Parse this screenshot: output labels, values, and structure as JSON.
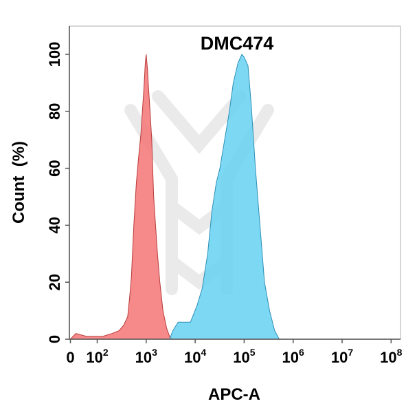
{
  "chart_data": {
    "type": "area",
    "title": "DMC474",
    "xlabel": "APC-A",
    "ylabel": "Count  (%)",
    "xscale": "biexponential",
    "ylim": [
      0,
      100
    ],
    "grid": false,
    "legend": "none",
    "y_ticks": [
      {
        "value": 0,
        "label": "0"
      },
      {
        "value": 20,
        "label": "20"
      },
      {
        "value": 40,
        "label": "40"
      },
      {
        "value": 60,
        "label": "60"
      },
      {
        "value": 80,
        "label": "80"
      },
      {
        "value": 100,
        "label": "100"
      }
    ],
    "x_ticks": [
      {
        "value": 0,
        "base": "0",
        "exp": ""
      },
      {
        "value": 100,
        "base": "10",
        "exp": "2"
      },
      {
        "value": 1000,
        "base": "10",
        "exp": "3"
      },
      {
        "value": 10000,
        "base": "10",
        "exp": "4"
      },
      {
        "value": 100000,
        "base": "10",
        "exp": "5"
      },
      {
        "value": 1000000,
        "base": "10",
        "exp": "6"
      },
      {
        "value": 10000000,
        "base": "10",
        "exp": "7"
      },
      {
        "value": 100000000,
        "base": "10",
        "exp": "8"
      }
    ],
    "series": [
      {
        "color": "#f47474",
        "stroke": "#b83a3a",
        "points": [
          [
            0,
            0
          ],
          [
            20,
            2
          ],
          [
            60,
            1
          ],
          [
            130,
            1
          ],
          [
            200,
            2
          ],
          [
            280,
            3
          ],
          [
            350,
            5
          ],
          [
            420,
            8
          ],
          [
            460,
            15
          ],
          [
            500,
            22
          ],
          [
            560,
            40
          ],
          [
            630,
            55
          ],
          [
            700,
            64
          ],
          [
            780,
            72
          ],
          [
            850,
            82
          ],
          [
            900,
            88
          ],
          [
            960,
            97
          ],
          [
            1000,
            100
          ],
          [
            1060,
            95
          ],
          [
            1120,
            88
          ],
          [
            1200,
            80
          ],
          [
            1300,
            70
          ],
          [
            1420,
            50
          ],
          [
            1550,
            40
          ],
          [
            1700,
            30
          ],
          [
            1900,
            20
          ],
          [
            2200,
            10
          ],
          [
            2600,
            4
          ],
          [
            3000,
            1
          ],
          [
            3500,
            0
          ]
        ]
      },
      {
        "color": "#66d1f2",
        "stroke": "#2c8fb5",
        "points": [
          [
            200,
            0
          ],
          [
            3000,
            0
          ],
          [
            3500,
            3
          ],
          [
            4500,
            6
          ],
          [
            6000,
            6
          ],
          [
            8000,
            6
          ],
          [
            11000,
            12
          ],
          [
            14000,
            18
          ],
          [
            18000,
            30
          ],
          [
            22000,
            45
          ],
          [
            27000,
            55
          ],
          [
            32000,
            60
          ],
          [
            40000,
            70
          ],
          [
            50000,
            80
          ],
          [
            60000,
            90
          ],
          [
            75000,
            97
          ],
          [
            90000,
            100
          ],
          [
            100000,
            99
          ],
          [
            120000,
            96
          ],
          [
            140000,
            82
          ],
          [
            170000,
            60
          ],
          [
            210000,
            40
          ],
          [
            260000,
            20
          ],
          [
            330000,
            10
          ],
          [
            420000,
            3
          ],
          [
            520000,
            0
          ]
        ]
      }
    ]
  }
}
